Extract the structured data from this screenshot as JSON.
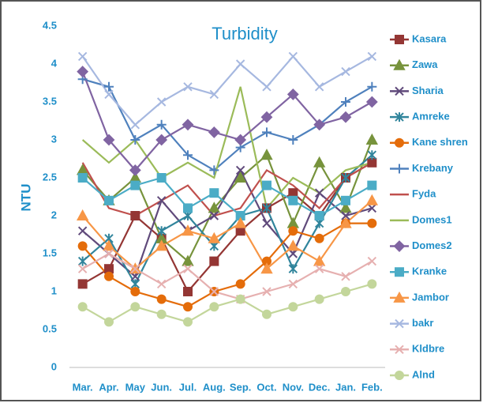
{
  "chart_data": {
    "type": "line",
    "title": "Turbidity",
    "y_label": "NTU",
    "categories": [
      "Mar.",
      "Apr.",
      "May",
      "Jun.",
      "Jul.",
      "Aug.",
      "Sep.",
      "Oct.",
      "Nov.",
      "Dec.",
      "Jan.",
      "Feb."
    ],
    "ylim": [
      0,
      4.5
    ],
    "yticks": [
      0,
      0.5,
      1,
      1.5,
      2,
      2.5,
      3,
      3.5,
      4,
      4.5
    ],
    "grid": false,
    "legend": "right",
    "series": [
      {
        "name": "Kasara",
        "color": "#943634",
        "marker": "square",
        "values": [
          1.1,
          1.3,
          2.0,
          1.7,
          1.0,
          1.4,
          1.8,
          2.1,
          2.3,
          2.0,
          2.5,
          2.7
        ]
      },
      {
        "name": "Zawa",
        "color": "#77933c",
        "marker": "triangle",
        "values": [
          2.6,
          2.2,
          2.5,
          1.7,
          1.4,
          2.1,
          2.5,
          2.8,
          1.9,
          2.7,
          2.1,
          3.0
        ]
      },
      {
        "name": "Sharia",
        "color": "#604a7b",
        "marker": "x",
        "values": [
          1.8,
          1.5,
          1.2,
          2.2,
          1.8,
          2.0,
          2.6,
          1.9,
          1.5,
          2.3,
          2.0,
          2.1
        ]
      },
      {
        "name": "Amreke",
        "color": "#31859c",
        "marker": "star",
        "values": [
          1.4,
          1.7,
          1.1,
          1.8,
          2.0,
          1.6,
          2.0,
          2.1,
          1.3,
          1.9,
          2.5,
          2.8
        ]
      },
      {
        "name": "Kane shren",
        "color": "#e46c0a",
        "marker": "circle",
        "values": [
          1.6,
          1.2,
          1.0,
          0.9,
          0.8,
          1.0,
          1.1,
          1.4,
          1.8,
          1.7,
          1.9,
          1.9
        ]
      },
      {
        "name": "Krebany",
        "color": "#4f81bd",
        "marker": "plus",
        "values": [
          3.8,
          3.7,
          3.0,
          3.2,
          2.8,
          2.6,
          2.9,
          3.1,
          3.0,
          3.2,
          3.5,
          3.7
        ]
      },
      {
        "name": "Fyda",
        "color": "#c0504d",
        "marker": "none",
        "values": [
          2.7,
          2.1,
          2.0,
          2.2,
          2.4,
          2.0,
          2.1,
          2.6,
          2.4,
          2.1,
          2.5,
          2.7
        ]
      },
      {
        "name": "Domes1",
        "color": "#9bbb59",
        "marker": "none",
        "values": [
          3.0,
          2.7,
          3.0,
          2.5,
          2.7,
          2.5,
          3.7,
          2.1,
          2.5,
          2.3,
          2.6,
          2.7
        ]
      },
      {
        "name": "Domes2",
        "color": "#8064a2",
        "marker": "diamond",
        "values": [
          3.9,
          3.0,
          2.6,
          3.0,
          3.2,
          3.1,
          3.0,
          3.3,
          3.6,
          3.2,
          3.3,
          3.5
        ]
      },
      {
        "name": "Kranke",
        "color": "#4bacc6",
        "marker": "square",
        "values": [
          2.5,
          2.2,
          2.4,
          2.5,
          2.1,
          2.3,
          2.0,
          2.4,
          2.2,
          2.0,
          2.2,
          2.4
        ]
      },
      {
        "name": "Jambor",
        "color": "#f79646",
        "marker": "triangle",
        "values": [
          2.0,
          1.6,
          1.3,
          1.6,
          1.8,
          1.7,
          1.9,
          1.3,
          1.6,
          1.4,
          1.9,
          2.2
        ]
      },
      {
        "name": "bakr",
        "color": "#a6b8e0",
        "marker": "x",
        "values": [
          4.1,
          3.6,
          3.2,
          3.5,
          3.7,
          3.6,
          4.0,
          3.7,
          4.1,
          3.7,
          3.9,
          4.1
        ]
      },
      {
        "name": "Kldbre",
        "color": "#e6b0b0",
        "marker": "x",
        "values": [
          1.3,
          1.5,
          1.3,
          1.1,
          1.3,
          1.0,
          0.9,
          1.0,
          1.1,
          1.3,
          1.2,
          1.4
        ]
      },
      {
        "name": "Alnd",
        "color": "#c3d69b",
        "marker": "circle",
        "values": [
          0.8,
          0.6,
          0.8,
          0.7,
          0.6,
          0.8,
          0.9,
          0.7,
          0.8,
          0.9,
          1.0,
          1.1
        ]
      }
    ]
  }
}
